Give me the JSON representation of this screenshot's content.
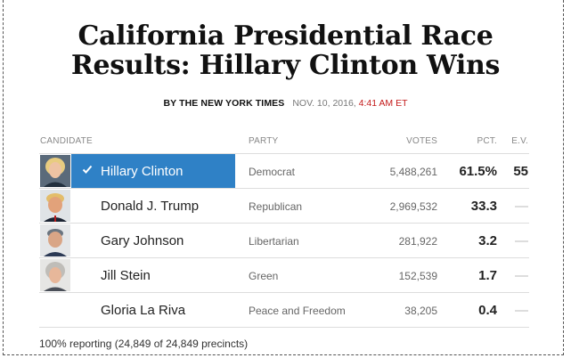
{
  "title_line1": "California Presidential Race",
  "title_line2": "Results: Hillary Clinton Wins",
  "byline": {
    "by": "BY THE NEW YORK TIMES",
    "date": "NOV. 10, 2016,",
    "time": "4:41 AM ET"
  },
  "table": {
    "headers": {
      "candidate": "CANDIDATE",
      "party": "PARTY",
      "votes": "VOTES",
      "pct": "PCT.",
      "ev": "E.V."
    },
    "rows": [
      {
        "name": "Hillary Clinton",
        "party": "Democrat",
        "votes": "5,488,261",
        "pct": "61.5%",
        "ev": "55",
        "winner": true
      },
      {
        "name": "Donald J. Trump",
        "party": "Republican",
        "votes": "2,969,532",
        "pct": "33.3",
        "ev": "—"
      },
      {
        "name": "Gary Johnson",
        "party": "Libertarian",
        "votes": "281,922",
        "pct": "3.2",
        "ev": "—"
      },
      {
        "name": "Jill Stein",
        "party": "Green",
        "votes": "152,539",
        "pct": "1.7",
        "ev": "—"
      },
      {
        "name": "Gloria La Riva",
        "party": "Peace and Freedom",
        "votes": "38,205",
        "pct": "0.4",
        "ev": "—"
      }
    ]
  },
  "footer": "100% reporting (24,849 of 24,849 precincts)",
  "colors": {
    "winner_highlight": "#2f81c6",
    "timestamp": "#c41a1a"
  }
}
